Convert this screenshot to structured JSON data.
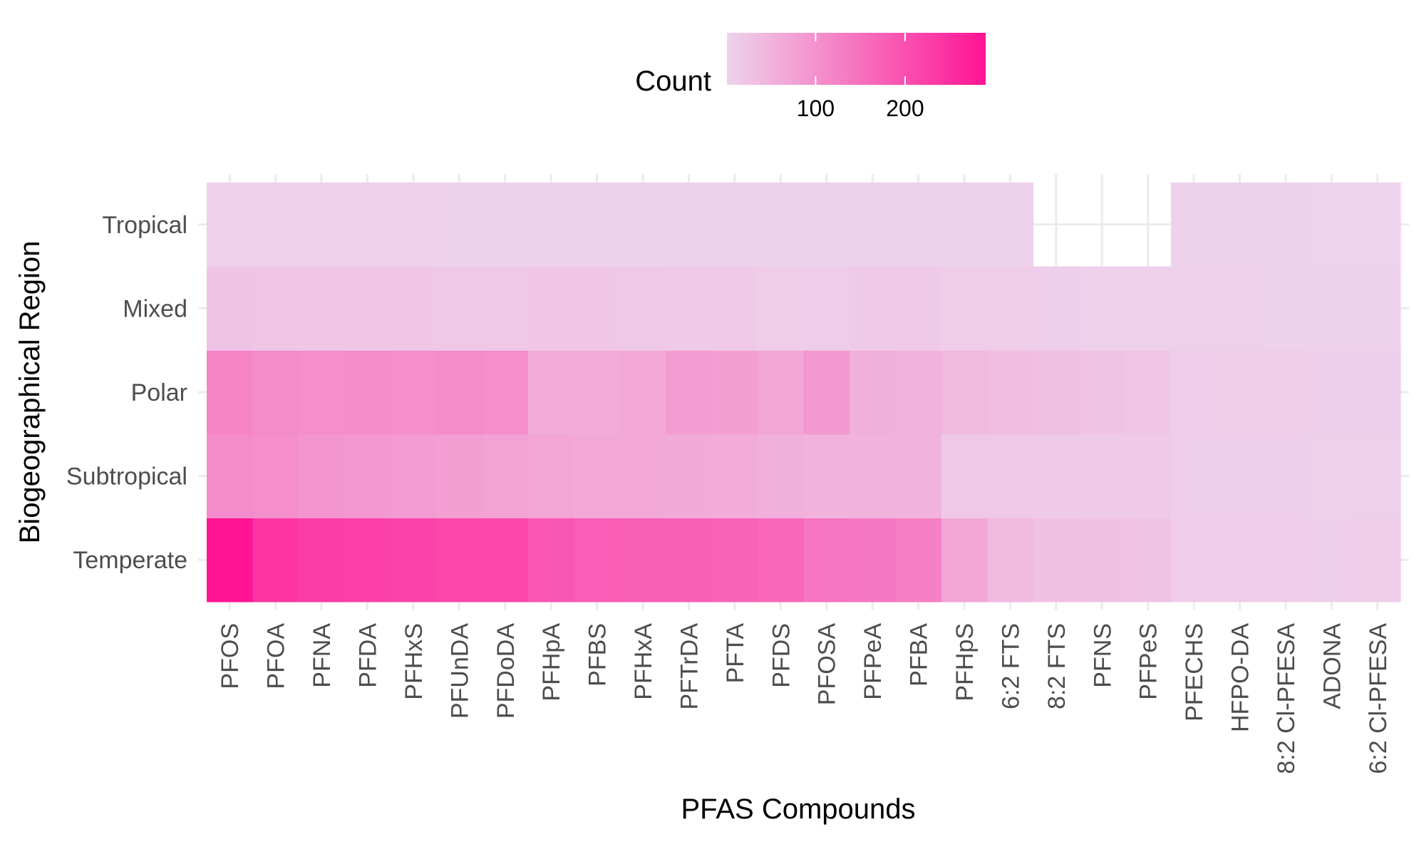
{
  "chart_data": {
    "type": "heatmap",
    "title": "",
    "xlabel": "PFAS Compounds",
    "ylabel": "Biogeographical Region",
    "legend": {
      "title": "Count",
      "ticks": [
        100,
        200
      ],
      "position": "top",
      "low_color": "#eed3ec",
      "high_color": "#ff1493",
      "min": 1,
      "max": 290
    },
    "x": [
      "PFOS",
      "PFOA",
      "PFNA",
      "PFDA",
      "PFHxS",
      "PFUnDA",
      "PFDoDA",
      "PFHpA",
      "PFBS",
      "PFHxA",
      "PFTrDA",
      "PFTA",
      "PFDS",
      "PFOSA",
      "PFPeA",
      "PFBA",
      "PFHpS",
      "6:2 FTS",
      "8:2 FTS",
      "PFNS",
      "PFPeS",
      "PFECHS",
      "HFPO-DA",
      "8:2 Cl-PFESA",
      "ADONA",
      "6:2 Cl-PFESA"
    ],
    "y": [
      "Temperate",
      "Subtropical",
      "Polar",
      "Mixed",
      "Tropical"
    ],
    "values": [
      [
        290,
        240,
        230,
        225,
        220,
        215,
        215,
        190,
        180,
        175,
        175,
        170,
        165,
        145,
        140,
        130,
        70,
        40,
        30,
        28,
        25,
        12,
        12,
        12,
        8,
        10
      ],
      [
        110,
        105,
        95,
        90,
        85,
        80,
        75,
        70,
        65,
        65,
        62,
        60,
        55,
        50,
        50,
        50,
        18,
        18,
        15,
        15,
        15,
        8,
        8,
        8,
        5,
        6
      ],
      [
        120,
        110,
        105,
        110,
        105,
        110,
        105,
        60,
        60,
        65,
        85,
        80,
        70,
        90,
        55,
        50,
        40,
        35,
        30,
        25,
        20,
        12,
        10,
        10,
        8,
        8
      ],
      [
        25,
        22,
        20,
        20,
        20,
        18,
        18,
        20,
        20,
        18,
        15,
        15,
        10,
        12,
        15,
        15,
        10,
        10,
        8,
        6,
        5,
        5,
        5,
        4,
        4,
        4
      ],
      [
        5,
        5,
        5,
        5,
        5,
        4,
        4,
        4,
        4,
        4,
        4,
        4,
        4,
        4,
        4,
        4,
        4,
        4,
        null,
        null,
        null,
        2,
        2,
        2,
        1,
        1
      ]
    ]
  }
}
